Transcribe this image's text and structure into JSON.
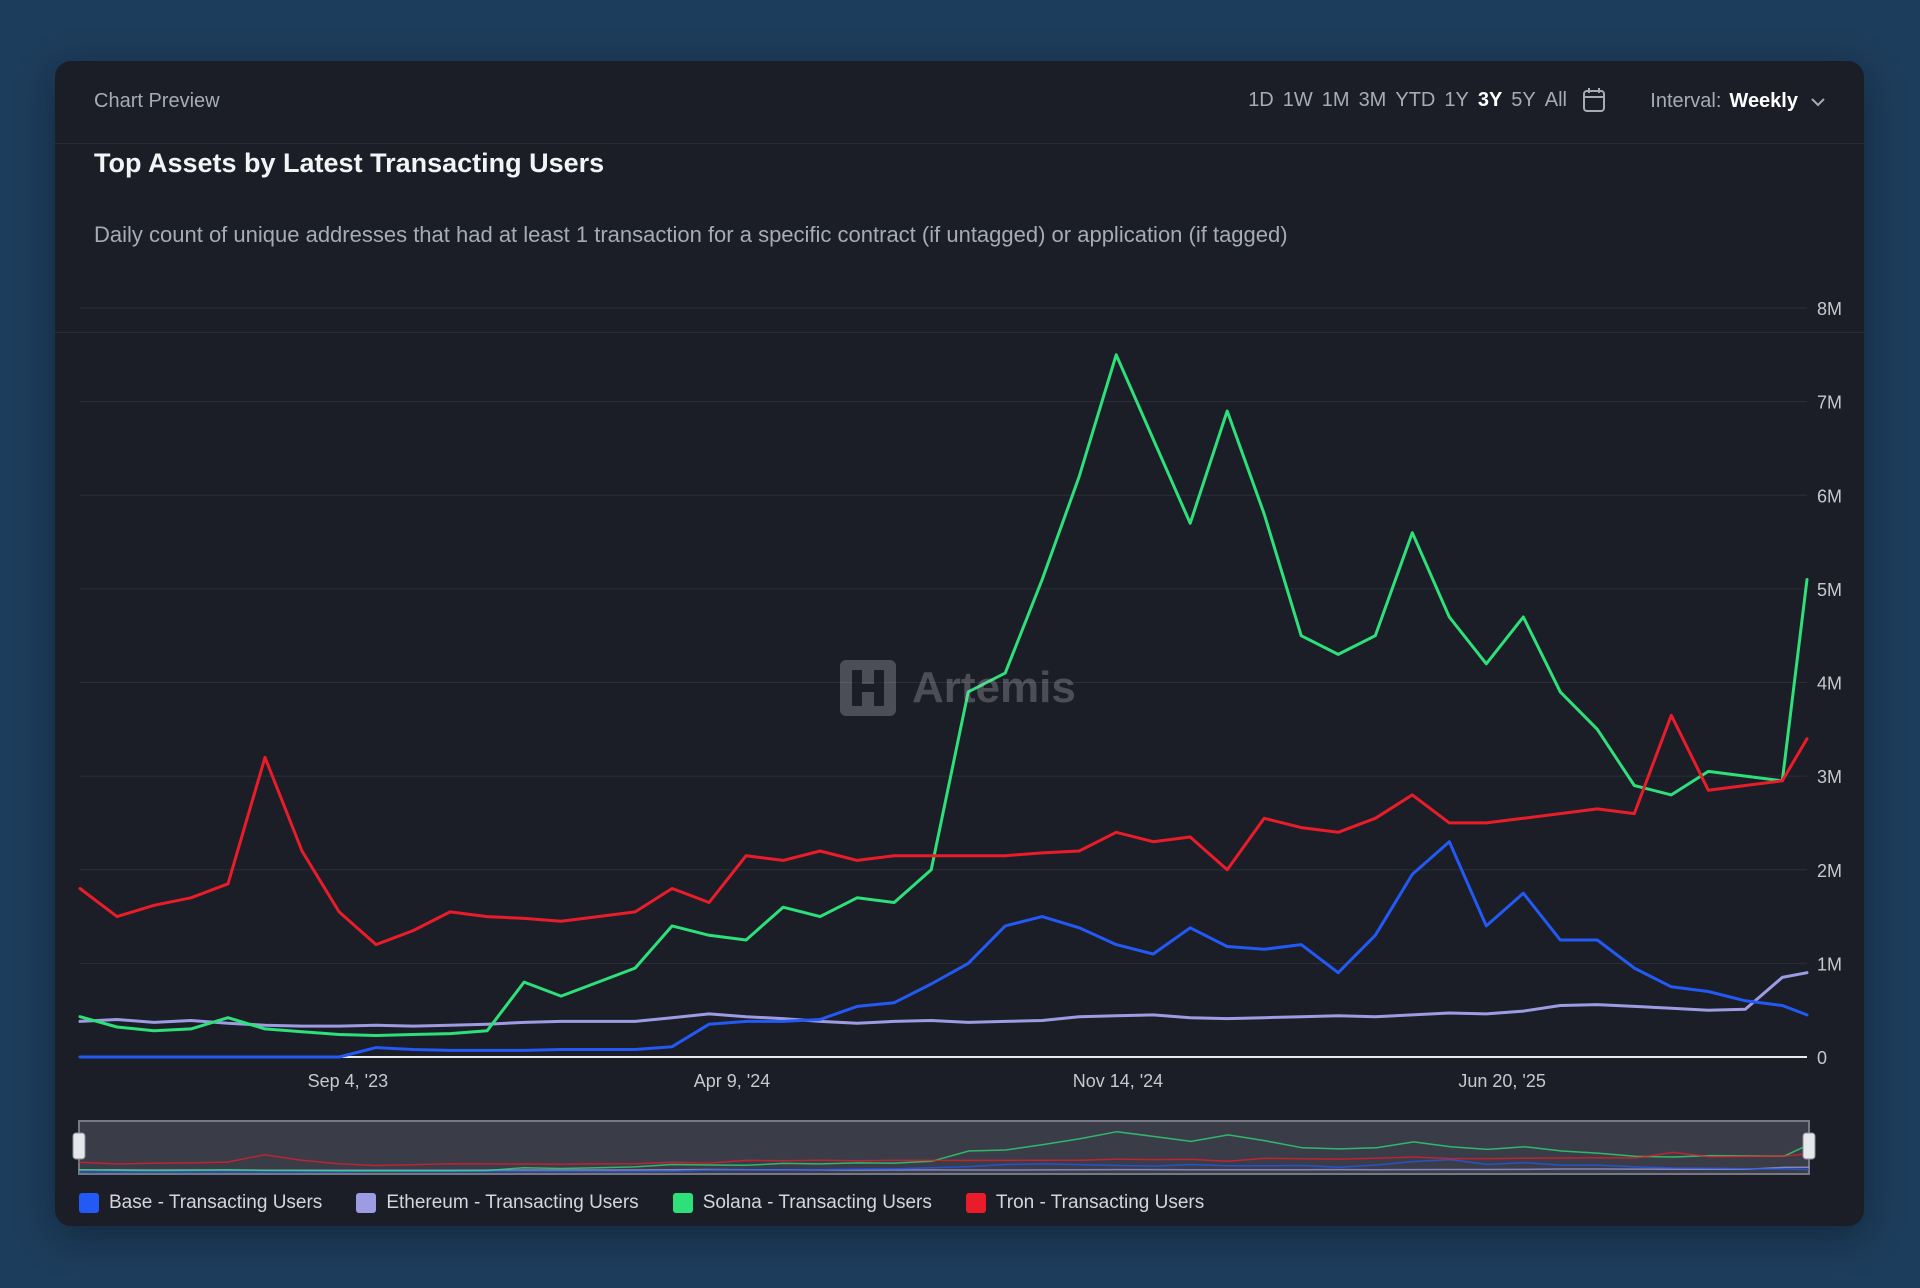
{
  "card": {
    "preview_label": "Chart Preview",
    "title": "Top Assets by Latest Transacting Users",
    "subtitle": "Daily count of unique addresses that had at least 1 transaction for a specific contract (if untagged) or application (if tagged)"
  },
  "toolbar": {
    "ranges": [
      "1D",
      "1W",
      "1M",
      "3M",
      "YTD",
      "1Y",
      "3Y",
      "5Y",
      "All"
    ],
    "active_range": "3Y",
    "calendar_icon": "calendar-icon",
    "interval_label": "Interval:",
    "interval_value": "Weekly",
    "interval_icon": "chevron-down-icon"
  },
  "watermark": {
    "text": "Artemis",
    "icon": "artemis-logo-icon"
  },
  "colors": {
    "base": "#2359f5",
    "ethereum": "#9d9ce3",
    "solana": "#2ee07a",
    "tron": "#eb1c2a",
    "card_bg": "#1b1e27",
    "page_bg": "#1d3d5c"
  },
  "chart_data": {
    "type": "line",
    "x": [
      "2023-04-05",
      "2023-04-26",
      "2023-05-17",
      "2023-06-07",
      "2023-06-28",
      "2023-07-19",
      "2023-08-09",
      "2023-08-30",
      "2023-09-20",
      "2023-10-11",
      "2023-11-01",
      "2023-11-22",
      "2023-12-13",
      "2024-01-03",
      "2024-01-24",
      "2024-02-14",
      "2024-03-06",
      "2024-03-27",
      "2024-04-17",
      "2024-05-08",
      "2024-05-29",
      "2024-06-19",
      "2024-07-10",
      "2024-07-31",
      "2024-08-21",
      "2024-09-11",
      "2024-10-02",
      "2024-10-23",
      "2024-11-13",
      "2024-12-04",
      "2024-12-25",
      "2025-01-15",
      "2025-02-05",
      "2025-02-26",
      "2025-03-19",
      "2025-04-09",
      "2025-04-30",
      "2025-05-21",
      "2025-06-11",
      "2025-07-02",
      "2025-07-23",
      "2025-08-13",
      "2025-09-03",
      "2025-09-24",
      "2025-10-15",
      "2025-11-05",
      "2025-11-26",
      "2025-12-10"
    ],
    "x_ticks": [
      "Sep 4, '23",
      "Apr 9, '24",
      "Nov 14, '24",
      "Jun 20, '25"
    ],
    "y_ticks": [
      "0",
      "1M",
      "2M",
      "3M",
      "4M",
      "5M",
      "6M",
      "7M",
      "8M"
    ],
    "ylim": [
      0,
      8000000
    ],
    "grid": true,
    "legend_position": "bottom-left",
    "series": [
      {
        "name": "Base - Transacting Users",
        "color": "#2359f5",
        "values": [
          0,
          0,
          0,
          0,
          0,
          0,
          0,
          0,
          100000,
          80000,
          70000,
          70000,
          70000,
          80000,
          80000,
          80000,
          110000,
          350000,
          380000,
          380000,
          400000,
          540000,
          580000,
          780000,
          1000000,
          1400000,
          1500000,
          1380000,
          1200000,
          1100000,
          1380000,
          1180000,
          1150000,
          1200000,
          900000,
          1300000,
          1950000,
          2300000,
          1400000,
          1750000,
          1250000,
          1250000,
          950000,
          750000,
          700000,
          600000,
          550000,
          450000
        ]
      },
      {
        "name": "Ethereum - Transacting Users",
        "color": "#9d9ce3",
        "values": [
          380000,
          400000,
          370000,
          390000,
          360000,
          340000,
          330000,
          330000,
          340000,
          330000,
          340000,
          350000,
          370000,
          380000,
          380000,
          380000,
          420000,
          460000,
          430000,
          410000,
          380000,
          360000,
          380000,
          390000,
          370000,
          380000,
          390000,
          430000,
          440000,
          450000,
          420000,
          410000,
          420000,
          430000,
          440000,
          430000,
          450000,
          470000,
          460000,
          490000,
          550000,
          560000,
          540000,
          520000,
          500000,
          510000,
          850000,
          900000
        ]
      },
      {
        "name": "Solana - Transacting Users",
        "color": "#2ee07a",
        "values": [
          430000,
          320000,
          280000,
          300000,
          420000,
          300000,
          270000,
          240000,
          230000,
          240000,
          250000,
          280000,
          800000,
          650000,
          800000,
          950000,
          1400000,
          1300000,
          1250000,
          1600000,
          1500000,
          1700000,
          1650000,
          2000000,
          3900000,
          4100000,
          5100000,
          6200000,
          7500000,
          6600000,
          5700000,
          6900000,
          5800000,
          4500000,
          4300000,
          4500000,
          5600000,
          4700000,
          4200000,
          4700000,
          3900000,
          3500000,
          2900000,
          2800000,
          3050000,
          3000000,
          2950000,
          5100000
        ]
      },
      {
        "name": "Tron - Transacting Users",
        "color": "#eb1c2a",
        "values": [
          1800000,
          1500000,
          1620000,
          1700000,
          1850000,
          3200000,
          2200000,
          1550000,
          1200000,
          1350000,
          1550000,
          1500000,
          1480000,
          1450000,
          1500000,
          1550000,
          1800000,
          1650000,
          2150000,
          2100000,
          2200000,
          2100000,
          2150000,
          2150000,
          2150000,
          2150000,
          2180000,
          2200000,
          2400000,
          2300000,
          2350000,
          2000000,
          2550000,
          2450000,
          2400000,
          2550000,
          2800000,
          2500000,
          2500000,
          2550000,
          2600000,
          2650000,
          2600000,
          3650000,
          2850000,
          2900000,
          2950000,
          3400000
        ]
      }
    ]
  }
}
